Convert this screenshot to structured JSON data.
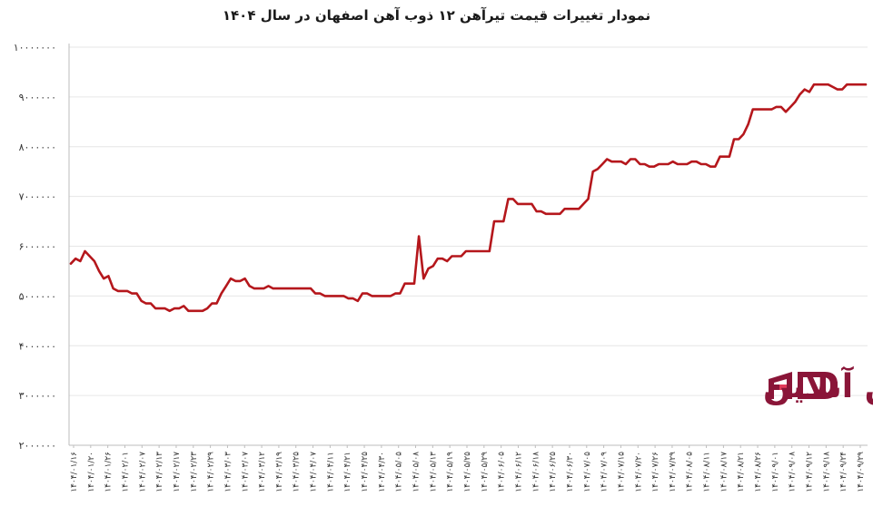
{
  "chart_data": {
    "type": "line",
    "title": "نمودار تغییرات قیمت تیرآهن ۱۲ ذوب آهن اصفهان در سال ۱۴۰۴",
    "xlabel": "",
    "ylabel": "",
    "ylim": [
      2000000,
      10000000
    ],
    "yticks": [
      2000000,
      3000000,
      4000000,
      5000000,
      6000000,
      7000000,
      8000000,
      9000000,
      10000000
    ],
    "ytick_labels": [
      "۲۰۰۰۰۰۰",
      "۳۰۰۰۰۰۰",
      "۴۰۰۰۰۰۰",
      "۵۰۰۰۰۰۰",
      "۶۰۰۰۰۰۰",
      "۷۰۰۰۰۰۰",
      "۸۰۰۰۰۰۰",
      "۹۰۰۰۰۰۰",
      "۱۰۰۰۰۰۰۰"
    ],
    "grid": true,
    "line_color": "#b5171c",
    "x_tick_labels": [
      "۱۴۰۴/۰۱/۱۶",
      "۱۴۰۴/۰۱/۲۰",
      "۱۴۰۴/۰۱/۲۶",
      "۱۴۰۴/۰۲/۰۱",
      "۱۴۰۴/۰۲/۰۷",
      "۱۴۰۴/۰۲/۱۳",
      "۱۴۰۴/۰۲/۱۷",
      "۱۴۰۴/۰۲/۲۳",
      "۱۴۰۴/۰۲/۲۹",
      "۱۴۰۴/۰۳/۰۳",
      "۱۴۰۴/۰۳/۰۷",
      "۱۴۰۴/۰۳/۱۲",
      "۱۴۰۴/۰۳/۱۹",
      "۱۴۰۴/۰۳/۲۵",
      "۱۴۰۴/۰۴/۰۷",
      "۱۴۰۴/۰۴/۱۱",
      "۱۴۰۴/۰۴/۲۱",
      "۱۴۰۴/۰۴/۲۵",
      "۱۴۰۴/۰۴/۳۰",
      "۱۴۰۴/۰۵/۰۵",
      "۱۴۰۴/۰۵/۰۸",
      "۱۴۰۴/۰۵/۱۳",
      "۱۴۰۴/۰۵/۱۹",
      "۱۴۰۴/۰۵/۲۵",
      "۱۴۰۴/۰۵/۲۹",
      "۱۴۰۴/۰۶/۰۵",
      "۱۴۰۴/۰۶/۱۲",
      "۱۴۰۴/۰۶/۱۸",
      "۱۴۰۴/۰۶/۲۵",
      "۱۴۰۴/۰۶/۳۰",
      "۱۴۰۴/۰۷/۰۵",
      "۱۴۰۴/۰۷/۰۹",
      "۱۴۰۴/۰۷/۱۵",
      "۱۴۰۴/۰۷/۲۰",
      "۱۴۰۴/۰۷/۲۶",
      "۱۴۰۴/۰۷/۲۹",
      "۱۴۰۴/۰۸/۰۵",
      "۱۴۰۴/۰۸/۱۱",
      "۱۴۰۴/۰۸/۱۷",
      "۱۴۰۴/۰۸/۲۱",
      "۱۴۰۴/۰۸/۲۶",
      "۱۴۰۴/۰۹/۰۱",
      "۱۴۰۴/۰۹/۰۸",
      "۱۴۰۴/۰۹/۱۲",
      "۱۴۰۴/۰۹/۱۸",
      "۱۴۰۴/۰۹/۲۴",
      "۱۴۰۴/۰۹/۲۹"
    ],
    "series": [
      {
        "values": [
          5650000,
          5750000,
          5700000,
          5900000,
          5800000,
          5700000,
          5500000,
          5350000,
          5400000,
          5150000,
          5100000,
          5100000,
          5100000,
          5050000,
          5050000,
          4900000,
          4850000,
          4850000,
          4750000,
          4750000,
          4750000,
          4700000,
          4750000,
          4750000,
          4800000,
          4700000,
          4700000,
          4700000,
          4700000,
          4750000,
          4850000,
          4850000,
          5050000,
          5200000,
          5350000,
          5300000,
          5300000,
          5350000,
          5200000,
          5150000,
          5150000,
          5150000,
          5200000,
          5150000,
          5150000,
          5150000,
          5150000,
          5150000,
          5150000,
          5150000,
          5150000,
          5150000,
          5050000,
          5050000,
          5000000,
          5000000,
          5000000,
          5000000,
          5000000,
          4950000,
          4950000,
          4900000,
          5050000,
          5050000,
          5000000,
          5000000,
          5000000,
          5000000,
          5000000,
          5050000,
          5050000,
          5250000,
          5250000,
          5250000,
          6200000,
          5350000,
          5550000,
          5600000,
          5750000,
          5750000,
          5700000,
          5800000,
          5800000,
          5800000,
          5900000,
          5900000,
          5900000,
          5900000,
          5900000,
          5900000,
          6500000,
          6500000,
          6500000,
          6950000,
          6950000,
          6850000,
          6850000,
          6850000,
          6850000,
          6700000,
          6700000,
          6650000,
          6650000,
          6650000,
          6650000,
          6750000,
          6750000,
          6750000,
          6750000,
          6850000,
          6950000,
          7500000,
          7550000,
          7650000,
          7750000,
          7700000,
          7700000,
          7700000,
          7650000,
          7750000,
          7750000,
          7650000,
          7650000,
          7600000,
          7600000,
          7650000,
          7650000,
          7650000,
          7700000,
          7650000,
          7650000,
          7650000,
          7700000,
          7700000,
          7650000,
          7650000,
          7600000,
          7600000,
          7800000,
          7800000,
          7800000,
          8150000,
          8150000,
          8250000,
          8450000,
          8750000,
          8750000,
          8750000,
          8750000,
          8750000,
          8800000,
          8800000,
          8700000,
          8800000,
          8900000,
          9050000,
          9150000,
          9100000,
          9250000,
          9250000,
          9250000,
          9250000,
          9200000,
          9150000,
          9150000,
          9250000,
          9250000,
          9250000,
          9250000,
          9250000
        ]
      }
    ]
  },
  "logo": {
    "text": "آهن آنلاین",
    "primary_color": "#8a1538",
    "accent_color": "#e23a5a"
  }
}
